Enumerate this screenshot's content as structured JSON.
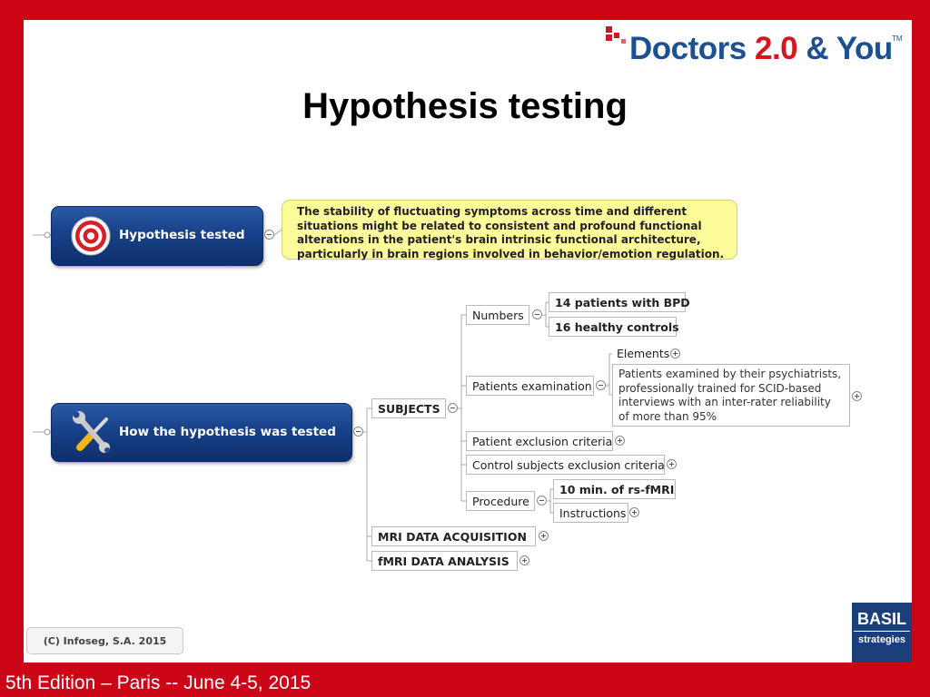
{
  "logo": {
    "part1": "Doctors",
    "part2": "2.0",
    "part3": "& You",
    "tm": "TM"
  },
  "title": "Hypothesis testing",
  "hypothesis": {
    "label": "Hypothesis tested",
    "note": "The stability of fluctuating symptoms across time and different situations might be related to consistent and profound functional alterations in the patient's brain intrinsic functional architecture, particularly in brain regions involved in behavior/emotion regulation."
  },
  "method": {
    "label": "How the hypothesis was tested",
    "subjects": {
      "label": "SUBJECTS",
      "numbers": {
        "label": "Numbers",
        "items": [
          "14 patients with BPD",
          "16 healthy controls"
        ]
      },
      "examination": {
        "label": "Patients examination",
        "elements": "Elements",
        "detail": "Patients examined by their psychiatrists, professionally trained for SCID-based interviews with an inter-rater reliability of more than 95%"
      },
      "patient_exclusion": "Patient exclusion criteria",
      "control_exclusion": "Control subjects exclusion criteria",
      "procedure": {
        "label": "Procedure",
        "items": [
          "10 min. of rs-fMRI",
          "Instructions"
        ]
      }
    },
    "mri_acquisition": "MRI DATA ACQUISITION",
    "fmri_analysis": "fMRI DATA ANALYSIS"
  },
  "copyright": "(C) Infoseg, S.A. 2015",
  "basil": {
    "line1": "BASIL",
    "line2": "strategies"
  },
  "footer": "5th Edition – Paris -- June 4-5, 2015",
  "colors": {
    "frame_red": "#cc0617",
    "node_blue": "#174189",
    "note_yellow": "#fdfc9a",
    "logo_blue": "#1d4f91",
    "logo_red": "#d6161f"
  }
}
